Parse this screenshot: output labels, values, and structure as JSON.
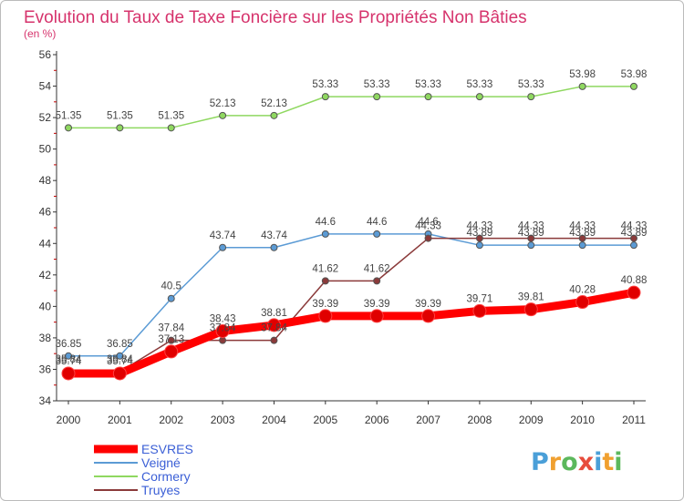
{
  "chart_data": {
    "type": "line",
    "title": "Evolution du Taux de Taxe Foncière sur les Propriétés Non Bâties",
    "subtitle": "(en %)",
    "xlabel": "",
    "ylabel": "",
    "x": [
      "2000",
      "2001",
      "2002",
      "2003",
      "2004",
      "2005",
      "2006",
      "2007",
      "2008",
      "2009",
      "2010",
      "2011"
    ],
    "ylim": [
      34,
      56
    ],
    "yticks": [
      "34",
      "36",
      "38",
      "40",
      "42",
      "44",
      "46",
      "48",
      "50",
      "52",
      "54",
      "56"
    ],
    "grid": false,
    "legend_position": "bottom-left",
    "series": [
      {
        "name": "ESVRES",
        "color": "#ff0000",
        "values": [
          35.74,
          35.74,
          37.13,
          38.43,
          38.81,
          39.39,
          39.39,
          39.39,
          39.71,
          39.81,
          40.28,
          40.88
        ],
        "labels": [
          "35.74",
          "35.74",
          "37.13",
          "38.43",
          "38.81",
          "39.39",
          "39.39",
          "39.39",
          "39.71",
          "39.81",
          "40.28",
          "40.88"
        ]
      },
      {
        "name": "Veigné",
        "color": "#5b9bd5",
        "values": [
          36.85,
          36.85,
          40.5,
          43.74,
          43.74,
          44.6,
          44.6,
          44.6,
          43.89,
          43.89,
          43.89,
          43.89
        ],
        "labels": [
          "36.85",
          "36.85",
          "40.5",
          "43.74",
          "43.74",
          "44.6",
          "44.6",
          "44.6",
          "43.89",
          "43.89",
          "43.89",
          "43.89"
        ]
      },
      {
        "name": "Cormery",
        "color": "#8fd860",
        "values": [
          51.35,
          51.35,
          51.35,
          52.13,
          52.13,
          53.33,
          53.33,
          53.33,
          53.33,
          53.33,
          53.98,
          53.98
        ],
        "labels": [
          "51.35",
          "51.35",
          "51.35",
          "52.13",
          "52.13",
          "53.33",
          "53.33",
          "53.33",
          "53.33",
          "53.33",
          "53.98",
          "53.98"
        ]
      },
      {
        "name": "Truyes",
        "color": "#8b3a3a",
        "values": [
          35.84,
          35.84,
          37.84,
          37.84,
          37.84,
          41.62,
          41.62,
          44.33,
          44.33,
          44.33,
          44.33,
          44.33
        ],
        "labels": [
          "35.84",
          "35.84",
          "37.84",
          "37.84",
          "37.84",
          "41.62",
          "41.62",
          "44.33",
          "44.33",
          "44.33",
          "44.33",
          "44.33"
        ]
      }
    ]
  },
  "brand": {
    "text": "Proxiti"
  }
}
